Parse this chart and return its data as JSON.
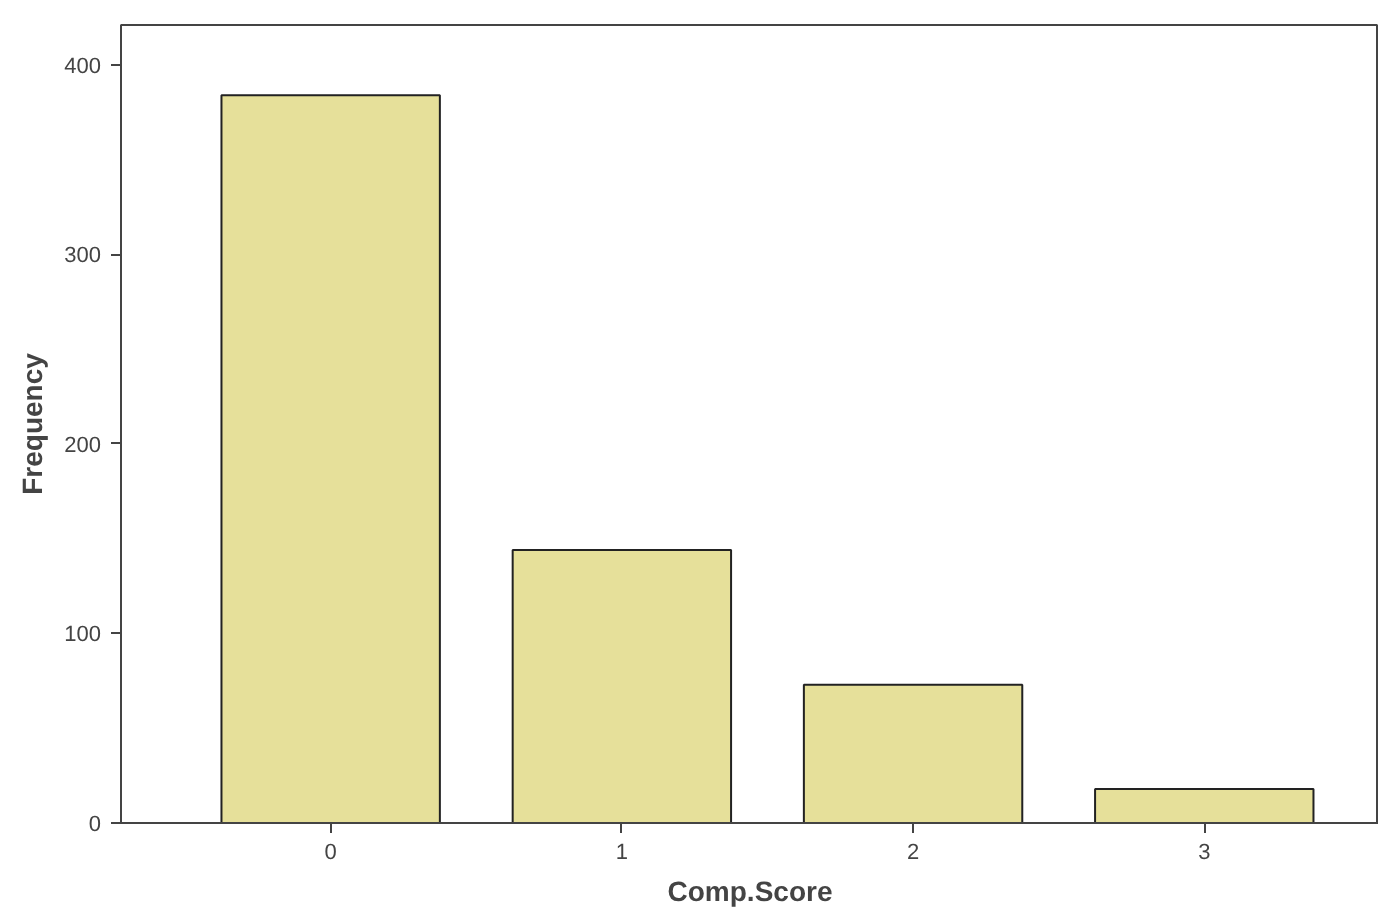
{
  "chart_data": {
    "type": "bar",
    "xlabel": "Comp.Score",
    "ylabel": "Frequency",
    "categories": [
      "0",
      "1",
      "2",
      "3"
    ],
    "series": [
      {
        "color": "#e6e09a",
        "values": [
          384,
          144,
          73,
          18
        ]
      }
    ],
    "ylim": [
      0,
      421
    ],
    "yticks": [
      0,
      100,
      200,
      300,
      400
    ],
    "grid": false
  }
}
